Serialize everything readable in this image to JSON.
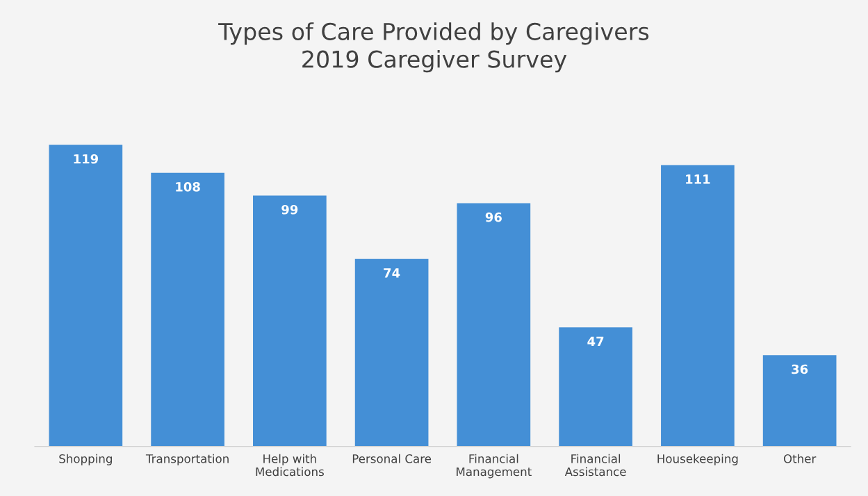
{
  "chart_data": {
    "type": "bar",
    "title": "Types of Care Provided by Caregivers\n2019 Caregiver Survey",
    "categories": [
      "Shopping",
      "Transportation",
      "Help with\nMedications",
      "Personal Care",
      "Financial\nManagement",
      "Financial\nAssistance",
      "Housekeeping",
      "Other"
    ],
    "values": [
      119,
      108,
      99,
      74,
      96,
      47,
      111,
      36
    ],
    "color": "#448fd6",
    "data_labels": true,
    "grid": false,
    "legend": false
  }
}
